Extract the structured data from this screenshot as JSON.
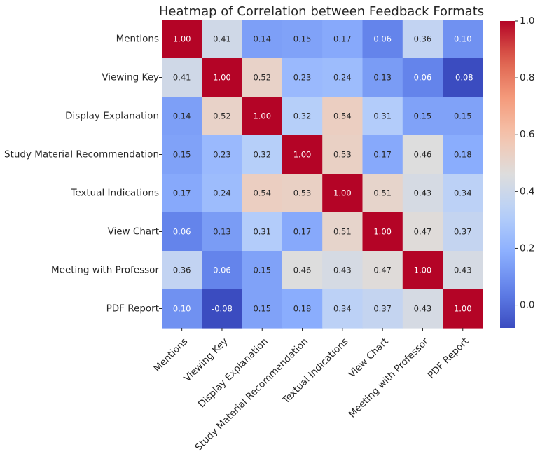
{
  "chart_data": {
    "type": "heatmap",
    "title": "Heatmap of Correlation between Feedback Formats",
    "row_labels": [
      "Mentions",
      "Viewing Key",
      "Display Explanation",
      "Study Material Recommendation",
      "Textual Indications",
      "View Chart",
      "Meeting with Professor",
      "PDF Report"
    ],
    "col_labels": [
      "Mentions",
      "Viewing Key",
      "Display Explanation",
      "Study Material Recommendation",
      "Textual Indications",
      "View Chart",
      "Meeting with Professor",
      "PDF Report"
    ],
    "values": [
      [
        1.0,
        0.41,
        0.14,
        0.15,
        0.17,
        0.06,
        0.36,
        0.1
      ],
      [
        0.41,
        1.0,
        0.52,
        0.23,
        0.24,
        0.13,
        0.06,
        -0.08
      ],
      [
        0.14,
        0.52,
        1.0,
        0.32,
        0.54,
        0.31,
        0.15,
        0.15
      ],
      [
        0.15,
        0.23,
        0.32,
        1.0,
        0.53,
        0.17,
        0.46,
        0.18
      ],
      [
        0.17,
        0.24,
        0.54,
        0.53,
        1.0,
        0.51,
        0.43,
        0.34
      ],
      [
        0.06,
        0.13,
        0.31,
        0.17,
        0.51,
        1.0,
        0.47,
        0.37
      ],
      [
        0.36,
        0.06,
        0.15,
        0.46,
        0.43,
        0.47,
        1.0,
        0.43
      ],
      [
        0.1,
        -0.08,
        0.15,
        0.18,
        0.34,
        0.37,
        0.43,
        1.0
      ]
    ],
    "value_format": "0.00",
    "colormap": "coolwarm",
    "vmin": -0.08,
    "vmax": 1.0,
    "colorbar_ticks": [
      1.0,
      0.8,
      0.6,
      0.4,
      0.2,
      0.0
    ],
    "colorbar_tick_labels": [
      "1.0",
      "0.8",
      "0.6",
      "0.4",
      "0.2",
      "0.0"
    ],
    "annotations": true,
    "grid": false
  }
}
